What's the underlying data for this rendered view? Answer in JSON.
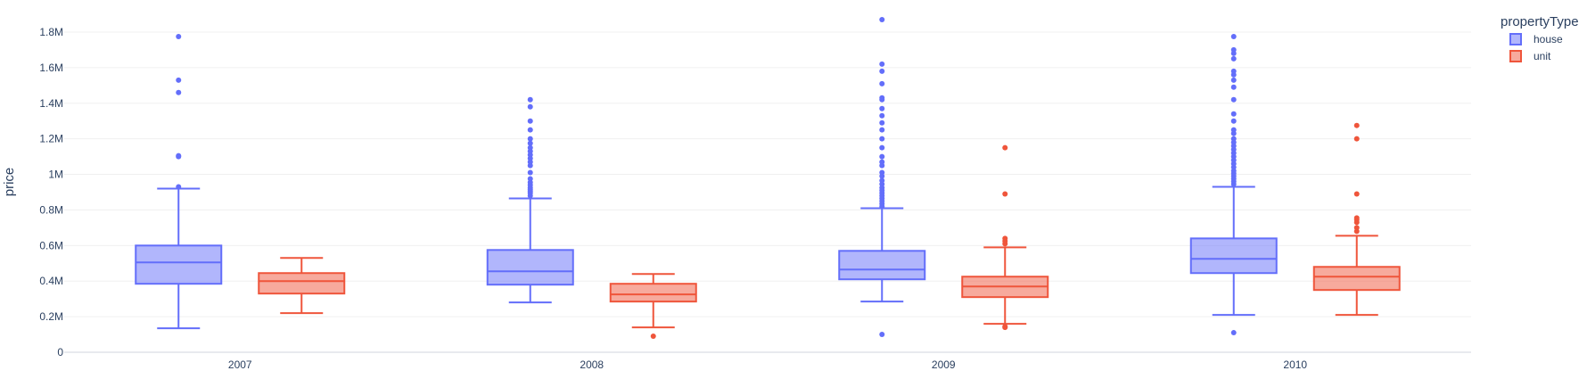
{
  "chart_data": {
    "type": "box",
    "title": "",
    "xlabel": "",
    "ylabel": "price",
    "ylim": [
      0,
      1850000
    ],
    "yticks": [
      0,
      200000,
      400000,
      600000,
      800000,
      1000000,
      1200000,
      1400000,
      1600000,
      1800000
    ],
    "ytick_labels": [
      "0",
      "0.2M",
      "0.4M",
      "0.6M",
      "0.8M",
      "1M",
      "1.2M",
      "1.4M",
      "1.6M",
      "1.8M"
    ],
    "categories": [
      "2007",
      "2008",
      "2009",
      "2010"
    ],
    "grid": true,
    "legend": {
      "title": "propertyType",
      "position": "top-right"
    },
    "series": [
      {
        "name": "house",
        "color": "#636efa",
        "boxes": [
          {
            "category": "2007",
            "min": 135000,
            "q1": 385000,
            "median": 505000,
            "q3": 600000,
            "max": 920000,
            "outliers": [
              930000,
              1100000,
              1105000,
              1460000,
              1530000,
              1775000
            ]
          },
          {
            "category": "2008",
            "min": 280000,
            "q1": 380000,
            "median": 455000,
            "q3": 575000,
            "max": 865000,
            "outliers": [
              880000,
              895000,
              905000,
              915000,
              925000,
              940000,
              955000,
              975000,
              1010000,
              1050000,
              1070000,
              1090000,
              1110000,
              1130000,
              1150000,
              1175000,
              1200000,
              1250000,
              1300000,
              1380000,
              1420000
            ]
          },
          {
            "category": "2009",
            "min": 285000,
            "q1": 410000,
            "median": 465000,
            "q3": 570000,
            "max": 810000,
            "outliers": [
              100000,
              820000,
              835000,
              850000,
              865000,
              880000,
              895000,
              910000,
              925000,
              945000,
              965000,
              990000,
              1010000,
              1050000,
              1070000,
              1100000,
              1150000,
              1200000,
              1250000,
              1290000,
              1330000,
              1370000,
              1420000,
              1430000,
              1510000,
              1580000,
              1620000,
              1870000
            ]
          },
          {
            "category": "2010",
            "min": 210000,
            "q1": 445000,
            "median": 525000,
            "q3": 640000,
            "max": 930000,
            "outliers": [
              110000,
              945000,
              960000,
              975000,
              990000,
              1005000,
              1020000,
              1040000,
              1060000,
              1080000,
              1100000,
              1120000,
              1140000,
              1160000,
              1180000,
              1200000,
              1230000,
              1250000,
              1300000,
              1340000,
              1420000,
              1490000,
              1530000,
              1560000,
              1580000,
              1650000,
              1680000,
              1700000,
              1775000
            ]
          }
        ]
      },
      {
        "name": "unit",
        "color": "#ef553b",
        "boxes": [
          {
            "category": "2007",
            "min": 220000,
            "q1": 330000,
            "median": 400000,
            "q3": 445000,
            "max": 530000,
            "outliers": []
          },
          {
            "category": "2008",
            "min": 140000,
            "q1": 285000,
            "median": 325000,
            "q3": 385000,
            "max": 440000,
            "outliers": [
              90000
            ]
          },
          {
            "category": "2009",
            "min": 160000,
            "q1": 310000,
            "median": 370000,
            "q3": 425000,
            "max": 590000,
            "outliers": [
              140000,
              145000,
              610000,
              625000,
              640000,
              890000,
              1150000
            ]
          },
          {
            "category": "2010",
            "min": 210000,
            "q1": 350000,
            "median": 425000,
            "q3": 480000,
            "max": 655000,
            "outliers": [
              680000,
              700000,
              730000,
              745000,
              755000,
              890000,
              1200000,
              1275000
            ]
          }
        ]
      }
    ]
  }
}
